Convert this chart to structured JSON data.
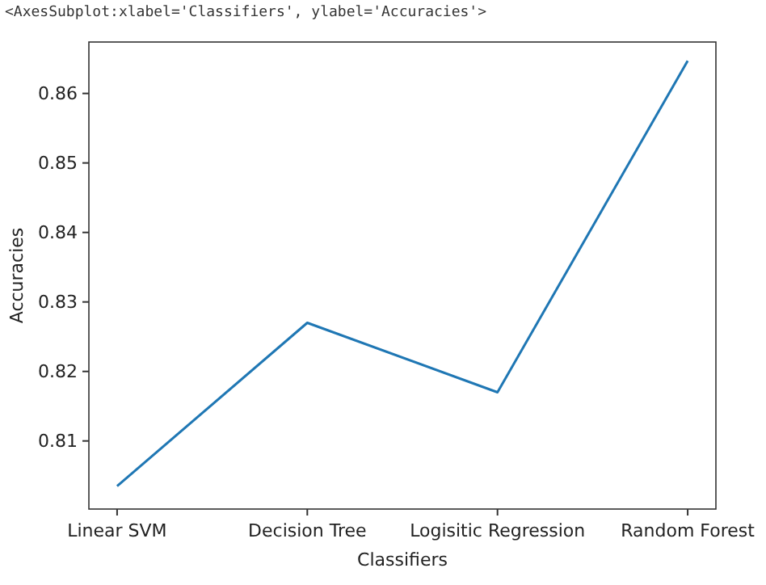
{
  "chart_data": {
    "type": "line",
    "xlabel": "Classifiers",
    "ylabel": "Accuracies",
    "annotations": [
      "<AxesSubplot:xlabel='Classifiers', ylabel='Accuracies'>"
    ],
    "categories": [
      "Linear SVM",
      "Decision Tree",
      "Logisitic Regression",
      "Random Forest"
    ],
    "series": [
      {
        "color": "#1f77b4",
        "values": [
          0.8035,
          0.827,
          0.817,
          0.8647
        ]
      }
    ],
    "ylim": [
      0.8002,
      0.8674
    ],
    "yticks": [
      0.81,
      0.82,
      0.83,
      0.84,
      0.85,
      0.86
    ],
    "marker": "none",
    "line_style": "solid"
  }
}
